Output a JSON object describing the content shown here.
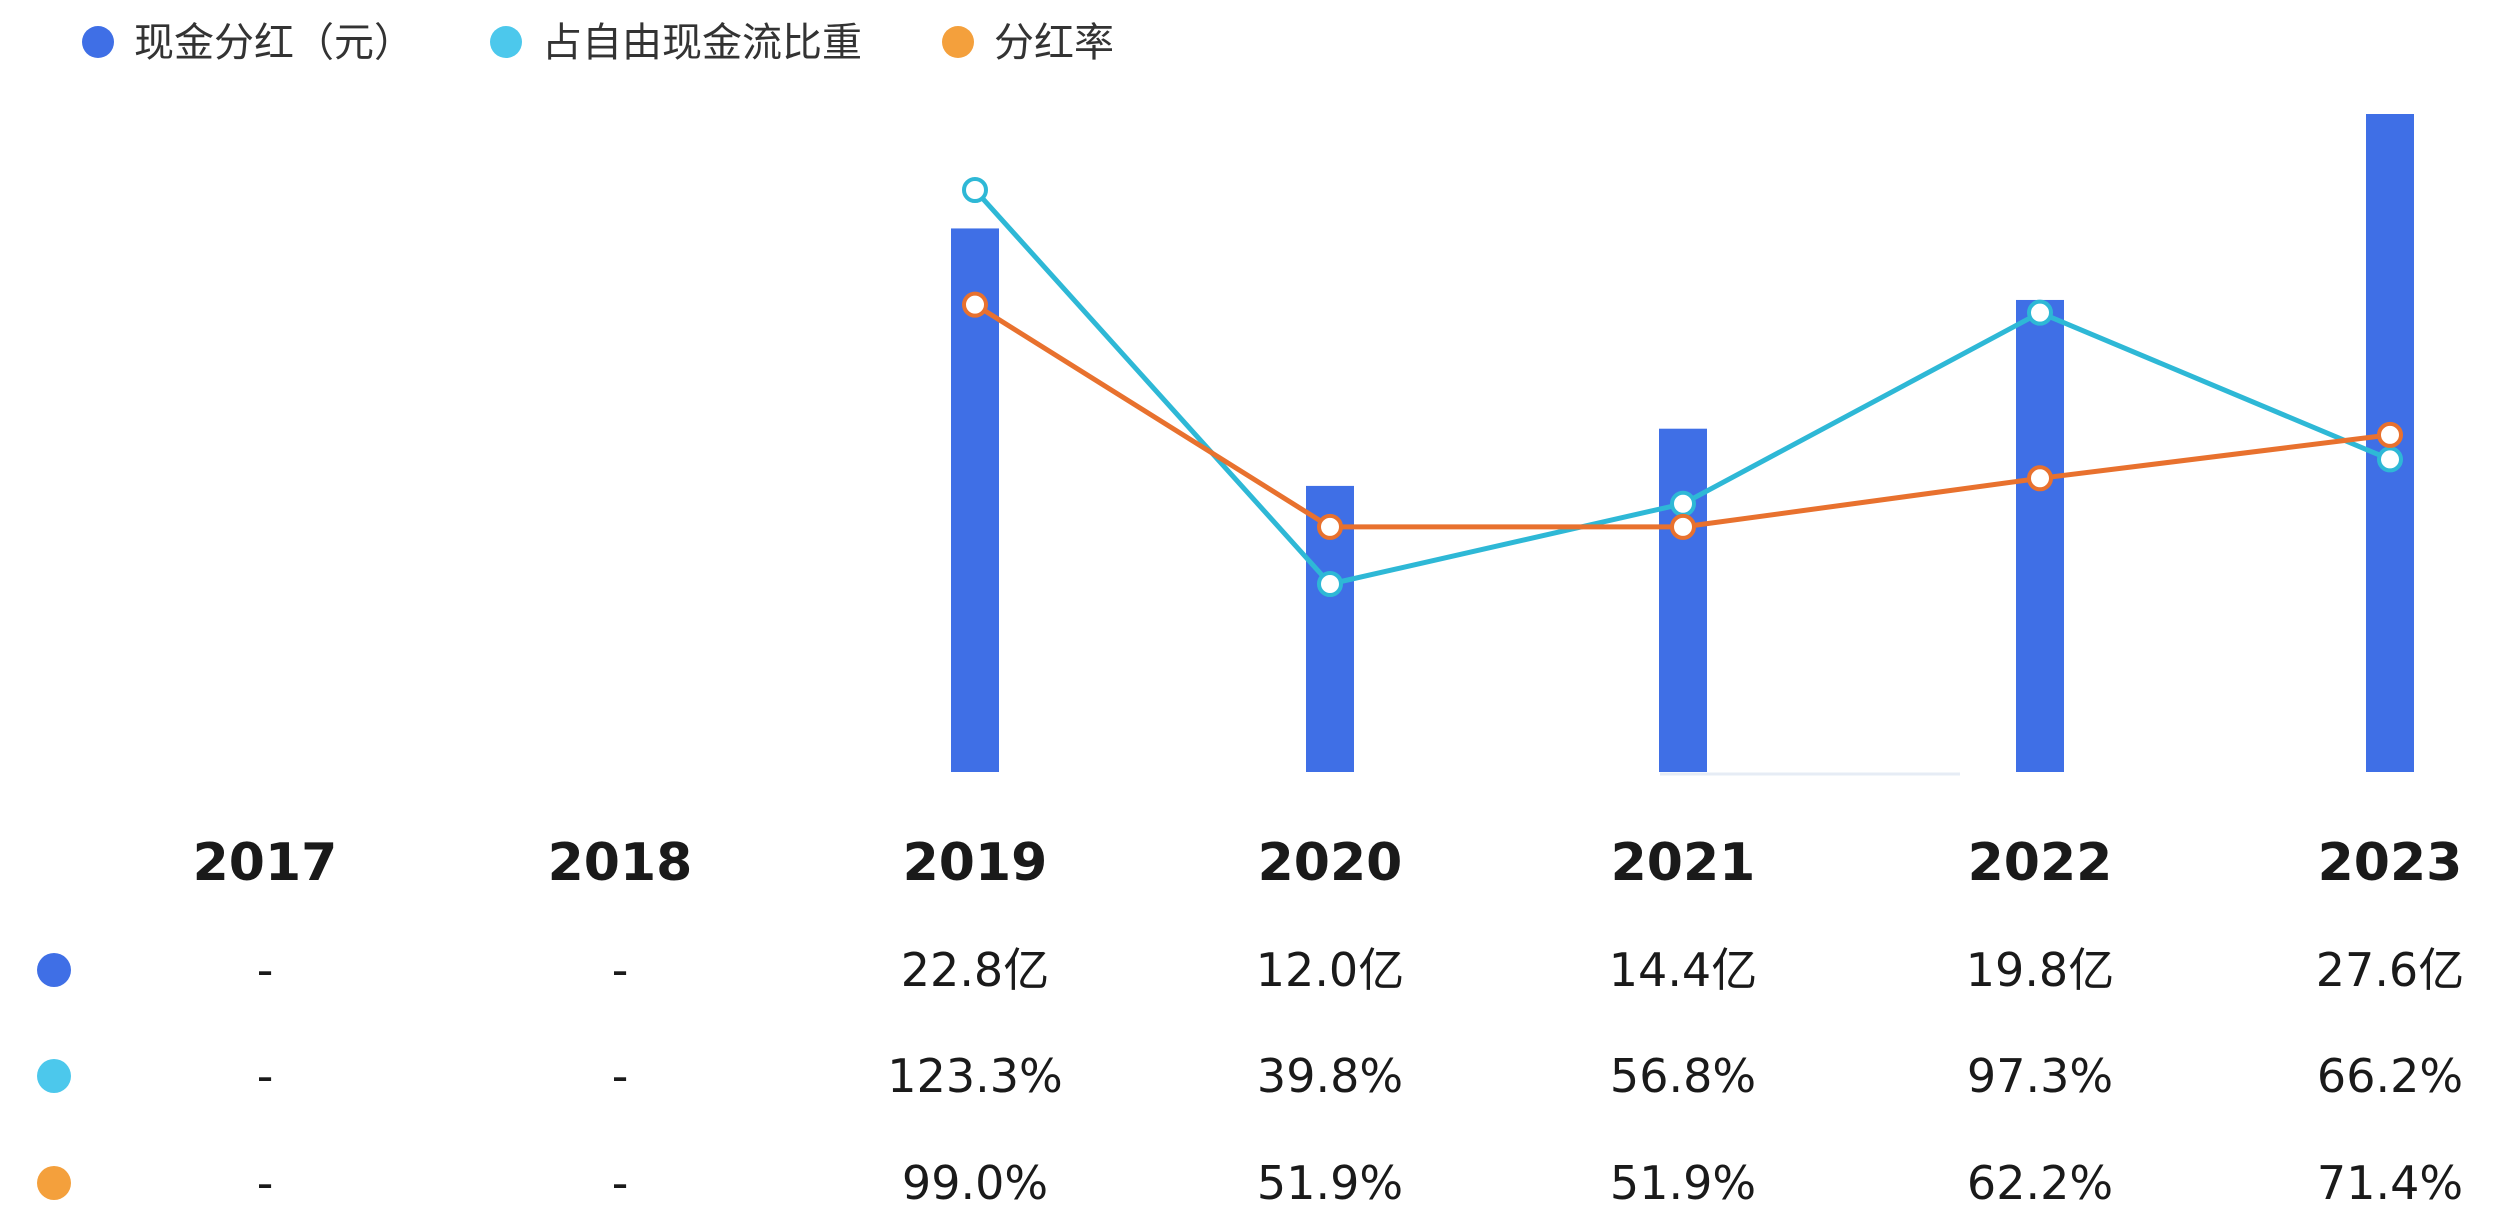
{
  "chart_data": {
    "type": "bar+line",
    "categories": [
      "2017",
      "2018",
      "2019",
      "2020",
      "2021",
      "2022",
      "2023"
    ],
    "series": [
      {
        "name": "现金分红（元）",
        "kind": "bar",
        "color": "#3f6fe6",
        "values": [
          null,
          null,
          22.8,
          12.0,
          14.4,
          19.8,
          27.6
        ],
        "labels": [
          "-",
          "-",
          "22.8亿",
          "12.0亿",
          "14.4亿",
          "19.8亿",
          "27.6亿"
        ]
      },
      {
        "name": "占自由现金流比重",
        "kind": "line",
        "color": "#2eb8d6",
        "legend_color": "#4cc8ec",
        "values": [
          null,
          null,
          123.3,
          39.8,
          56.8,
          97.3,
          66.2
        ],
        "labels": [
          "-",
          "-",
          "123.3%",
          "39.8%",
          "56.8%",
          "97.3%",
          "66.2%"
        ]
      },
      {
        "name": "分红率",
        "kind": "line",
        "color": "#e8712e",
        "legend_color": "#f4a03c",
        "values": [
          null,
          null,
          99.0,
          51.9,
          51.9,
          62.2,
          71.4
        ],
        "labels": [
          "-",
          "-",
          "99.0%",
          "51.9%",
          "51.9%",
          "62.2%",
          "71.4%"
        ]
      }
    ],
    "legend_position": "top-left",
    "grid": false
  }
}
